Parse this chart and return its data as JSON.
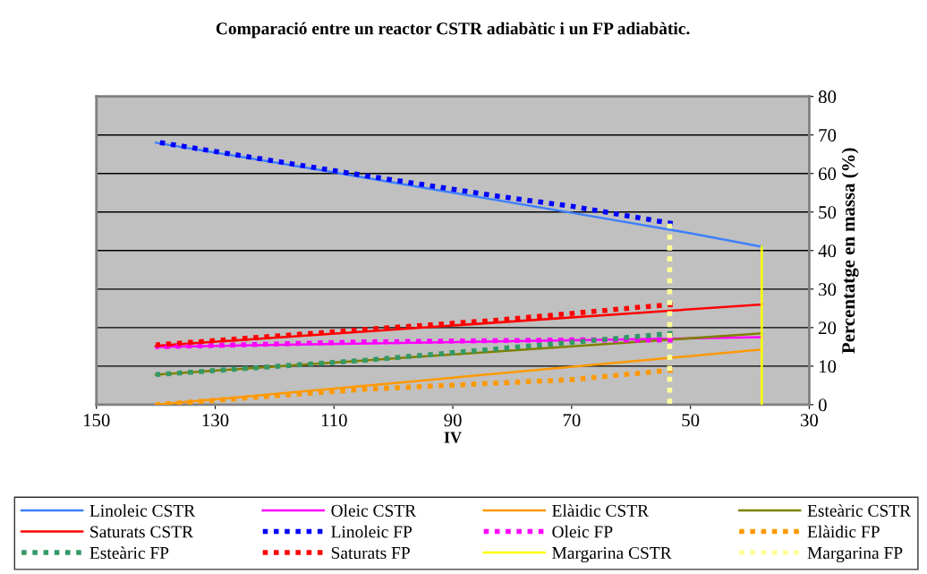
{
  "chart_data": {
    "type": "line",
    "title": "Comparació entre un reactor CSTR adiabàtic i un FP adiabàtic.",
    "xlabel": "IV",
    "ylabel": "Percentatge en massa (%)",
    "xlim": [
      150,
      30
    ],
    "xticks": [
      150,
      130,
      110,
      90,
      70,
      50,
      30
    ],
    "ylim": [
      0,
      80
    ],
    "yticks": [
      0,
      10,
      20,
      30,
      40,
      50,
      60,
      70,
      80
    ],
    "grid": "y",
    "legend": "bottom",
    "marker": "none",
    "series": [
      {
        "name": "Linoleic CSTR",
        "color": "#3f7fff",
        "line_style": "solid",
        "x": [
          140,
          110,
          90,
          70,
          50,
          38
        ],
        "values": [
          68,
          60.3,
          55,
          49.8,
          44.5,
          41
        ]
      },
      {
        "name": "Oleic CSTR",
        "color": "#ff00ff",
        "line_style": "solid",
        "x": [
          140,
          38
        ],
        "values": [
          15,
          17.5
        ]
      },
      {
        "name": "Elàidic CSTR",
        "color": "#ff9900",
        "line_style": "solid",
        "x": [
          140,
          38
        ],
        "values": [
          0,
          14.3
        ]
      },
      {
        "name": "Esteàric CSTR",
        "color": "#808000",
        "line_style": "solid",
        "x": [
          140,
          38
        ],
        "values": [
          7.8,
          18.5
        ]
      },
      {
        "name": "Saturats CSTR",
        "color": "#ff0000",
        "line_style": "solid",
        "x": [
          140,
          38
        ],
        "values": [
          15.3,
          26
        ]
      },
      {
        "name": "Linoleic FP",
        "color": "#0000ff",
        "line_style": "dashed",
        "x": [
          140,
          105,
          82,
          70,
          53
        ],
        "values": [
          68.2,
          59.5,
          54,
          51.5,
          47
        ]
      },
      {
        "name": "Oleic FP",
        "color": "#ff00ff",
        "line_style": "dashed",
        "x": [
          140,
          105,
          70,
          53
        ],
        "values": [
          15,
          16.3,
          16.8,
          16.8
        ]
      },
      {
        "name": "Elàidic FP",
        "color": "#ff9900",
        "line_style": "dashed",
        "x": [
          140,
          105,
          70,
          53
        ],
        "values": [
          0,
          4,
          6.5,
          9
        ]
      },
      {
        "name": "Esteàric FP",
        "color": "#339966",
        "line_style": "dashed",
        "x": [
          140,
          105,
          75,
          53
        ],
        "values": [
          7.8,
          11.5,
          15.5,
          18.5
        ]
      },
      {
        "name": "Saturats FP",
        "color": "#ff0000",
        "line_style": "dashed",
        "x": [
          140,
          105,
          82,
          57,
          53
        ],
        "values": [
          15.5,
          19.5,
          22,
          25.5,
          26
        ]
      },
      {
        "name": "Margarina CSTR",
        "color": "#ffff00",
        "line_style": "solid",
        "x": [
          38,
          38
        ],
        "values": [
          0,
          41
        ]
      },
      {
        "name": "Margarina FP",
        "color": "#ffff99",
        "line_style": "dashed",
        "x": [
          53.5,
          53.5
        ],
        "values": [
          0,
          47
        ]
      }
    ]
  }
}
